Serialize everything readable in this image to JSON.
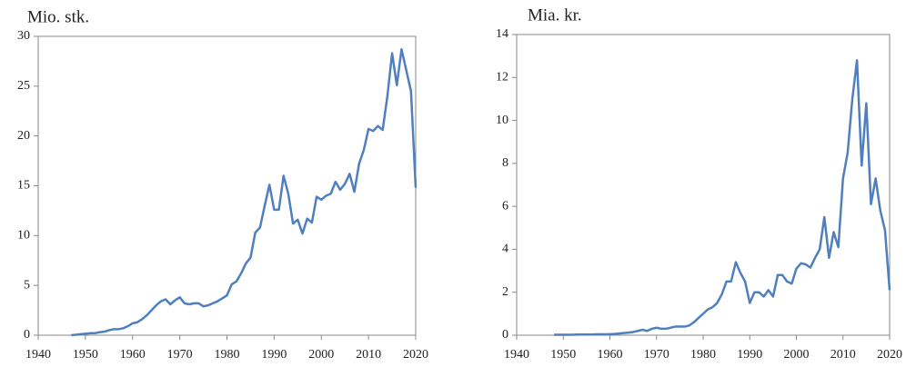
{
  "chart_data": [
    {
      "type": "line",
      "title": "Mio. stk.",
      "x": [
        1947,
        1948,
        1949,
        1950,
        1951,
        1952,
        1953,
        1954,
        1955,
        1956,
        1957,
        1958,
        1959,
        1960,
        1961,
        1962,
        1963,
        1964,
        1965,
        1966,
        1967,
        1968,
        1969,
        1970,
        1971,
        1972,
        1973,
        1974,
        1975,
        1976,
        1977,
        1978,
        1979,
        1980,
        1981,
        1982,
        1983,
        1984,
        1985,
        1986,
        1987,
        1988,
        1989,
        1990,
        1991,
        1992,
        1993,
        1994,
        1995,
        1996,
        1997,
        1998,
        1999,
        2000,
        2001,
        2002,
        2003,
        2004,
        2005,
        2006,
        2007,
        2008,
        2009,
        2010,
        2011,
        2012,
        2013,
        2014,
        2015,
        2016,
        2017,
        2018,
        2019,
        2020
      ],
      "series": [
        {
          "color": "#4f7fbf",
          "values": [
            0,
            0.05,
            0.1,
            0.15,
            0.2,
            0.2,
            0.3,
            0.35,
            0.5,
            0.6,
            0.6,
            0.7,
            0.9,
            1.2,
            1.3,
            1.6,
            2.0,
            2.5,
            3.0,
            3.4,
            3.6,
            3.1,
            3.5,
            3.8,
            3.2,
            3.1,
            3.2,
            3.2,
            2.9,
            3.0,
            3.2,
            3.4,
            3.7,
            4.0,
            5.1,
            5.4,
            6.2,
            7.2,
            7.8,
            10.3,
            10.8,
            13.0,
            15.1,
            12.6,
            12.6,
            16.0,
            14.2,
            11.2,
            11.6,
            10.2,
            11.7,
            11.3,
            13.9,
            13.6,
            14.0,
            14.2,
            15.4,
            14.6,
            15.2,
            16.2,
            14.4,
            17.2,
            18.6,
            20.7,
            20.5,
            21.0,
            20.6,
            24.0,
            28.3,
            25.1,
            28.7,
            26.6,
            24.5,
            14.8
          ]
        }
      ],
      "xlim": [
        1940,
        2020
      ],
      "xticks": [
        1940,
        1950,
        1960,
        1970,
        1980,
        1990,
        2000,
        2010,
        2020
      ],
      "ylim": [
        0,
        30
      ],
      "yticks": [
        0,
        5,
        10,
        15,
        20,
        25,
        30
      ]
    },
    {
      "type": "line",
      "title": "Mia. kr.",
      "x": [
        1948,
        1949,
        1950,
        1951,
        1952,
        1953,
        1954,
        1955,
        1956,
        1957,
        1958,
        1959,
        1960,
        1961,
        1962,
        1963,
        1964,
        1965,
        1966,
        1967,
        1968,
        1969,
        1970,
        1971,
        1972,
        1973,
        1974,
        1975,
        1976,
        1977,
        1978,
        1979,
        1980,
        1981,
        1982,
        1983,
        1984,
        1985,
        1986,
        1987,
        1988,
        1989,
        1990,
        1991,
        1992,
        1993,
        1994,
        1995,
        1996,
        1997,
        1998,
        1999,
        2000,
        2001,
        2002,
        2003,
        2004,
        2005,
        2006,
        2007,
        2008,
        2009,
        2010,
        2011,
        2012,
        2013,
        2014,
        2015,
        2016,
        2017,
        2018,
        2019,
        2020
      ],
      "series": [
        {
          "color": "#4f7fbf",
          "values": [
            0.02,
            0.02,
            0.02,
            0.02,
            0.02,
            0.03,
            0.03,
            0.03,
            0.03,
            0.04,
            0.04,
            0.04,
            0.05,
            0.06,
            0.08,
            0.1,
            0.12,
            0.15,
            0.2,
            0.25,
            0.2,
            0.3,
            0.35,
            0.3,
            0.3,
            0.35,
            0.4,
            0.4,
            0.4,
            0.45,
            0.6,
            0.8,
            1.0,
            1.2,
            1.3,
            1.5,
            1.9,
            2.5,
            2.5,
            3.4,
            2.9,
            2.5,
            1.5,
            2.0,
            2.0,
            1.8,
            2.1,
            1.8,
            2.8,
            2.8,
            2.5,
            2.4,
            3.1,
            3.35,
            3.3,
            3.15,
            3.6,
            4.0,
            5.5,
            3.6,
            4.8,
            4.1,
            7.3,
            8.5,
            11.0,
            12.8,
            7.9,
            10.8,
            6.1,
            7.3,
            5.8,
            4.9,
            2.1
          ]
        }
      ],
      "xlim": [
        1940,
        2020
      ],
      "xticks": [
        1940,
        1950,
        1960,
        1970,
        1980,
        1990,
        2000,
        2010,
        2020
      ],
      "ylim": [
        0,
        14
      ],
      "yticks": [
        0,
        2,
        4,
        6,
        8,
        10,
        12,
        14
      ]
    }
  ]
}
